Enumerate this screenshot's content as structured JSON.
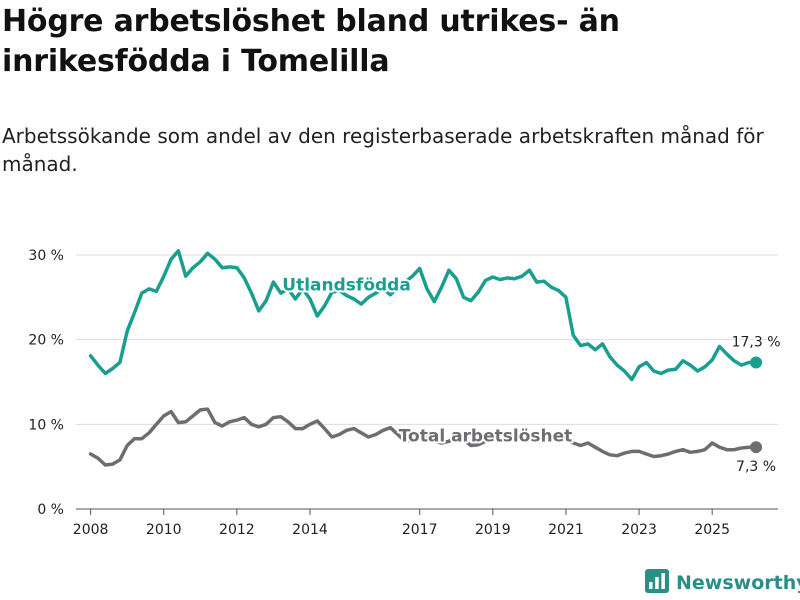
{
  "title": "Högre arbetslöshet bland utrikes- än inrikesfödda i Tomelilla",
  "subtitle": "Arbetssökande som andel av den registerbaserade arbetskraften månad för månad.",
  "brand": {
    "name": "Newsworthy",
    "icon": "bar-chart-logo-icon",
    "color": "#2a8f87"
  },
  "chart_data": {
    "type": "line",
    "title": "Högre arbetslöshet bland utrikes- än inrikesfödda i Tomelilla",
    "xlabel": "",
    "ylabel": "",
    "xlim": [
      2007.6,
      2026.8
    ],
    "ylim": [
      0,
      30
    ],
    "grid": true,
    "y_ticks": [
      0,
      10,
      20,
      30
    ],
    "y_tick_labels": [
      "0 %",
      "10 %",
      "20 %",
      "30 %"
    ],
    "x_ticks": [
      2008,
      2010,
      2012,
      2014,
      2017,
      2019,
      2021,
      2023,
      2025
    ],
    "x_tick_labels": [
      "2008",
      "2010",
      "2012",
      "2014",
      "2017",
      "2019",
      "2021",
      "2023",
      "2025"
    ],
    "series": [
      {
        "name": "Utlandsfödda",
        "color": "#1a9e8f",
        "end_label": "17,3 %",
        "x": [
          2008.0,
          2008.2,
          2008.4,
          2008.6,
          2008.8,
          2009.0,
          2009.2,
          2009.4,
          2009.6,
          2009.8,
          2010.0,
          2010.2,
          2010.4,
          2010.6,
          2010.8,
          2011.0,
          2011.2,
          2011.4,
          2011.6,
          2011.8,
          2012.0,
          2012.2,
          2012.4,
          2012.6,
          2012.8,
          2013.0,
          2013.2,
          2013.4,
          2013.6,
          2013.8,
          2014.0,
          2014.2,
          2014.4,
          2014.6,
          2014.8,
          2015.0,
          2015.2,
          2015.4,
          2015.6,
          2015.8,
          2016.0,
          2016.2,
          2016.4,
          2016.6,
          2016.8,
          2017.0,
          2017.2,
          2017.4,
          2017.6,
          2017.8,
          2018.0,
          2018.2,
          2018.4,
          2018.6,
          2018.8,
          2019.0,
          2019.2,
          2019.4,
          2019.6,
          2019.8,
          2020.0,
          2020.2,
          2020.4,
          2020.6,
          2020.8,
          2021.0,
          2021.2,
          2021.4,
          2021.6,
          2021.8,
          2022.0,
          2022.2,
          2022.4,
          2022.6,
          2022.8,
          2023.0,
          2023.2,
          2023.4,
          2023.6,
          2023.8,
          2024.0,
          2024.2,
          2024.4,
          2024.6,
          2024.8,
          2025.0,
          2025.2,
          2025.4,
          2025.6,
          2025.8,
          2026.0,
          2026.2
        ],
        "values": [
          18.1,
          17.0,
          16.0,
          16.6,
          17.3,
          21.0,
          23.2,
          25.5,
          26.0,
          25.7,
          27.5,
          29.5,
          30.5,
          27.5,
          28.5,
          29.2,
          30.2,
          29.5,
          28.5,
          28.6,
          28.5,
          27.3,
          25.5,
          23.4,
          24.6,
          26.8,
          25.5,
          26.0,
          24.8,
          26.0,
          24.8,
          22.8,
          24.0,
          25.6,
          25.8,
          25.2,
          24.8,
          24.2,
          25.0,
          25.5,
          26.0,
          25.3,
          26.2,
          26.8,
          27.5,
          28.4,
          26.0,
          24.5,
          26.2,
          28.2,
          27.2,
          25.0,
          24.6,
          25.6,
          27.0,
          27.4,
          27.1,
          27.3,
          27.2,
          27.5,
          28.2,
          26.8,
          26.9,
          26.2,
          25.8,
          25.0,
          20.5,
          19.3,
          19.5,
          18.8,
          19.5,
          18.0,
          17.0,
          16.3,
          15.3,
          16.8,
          17.3,
          16.3,
          16.0,
          16.4,
          16.5,
          17.5,
          17.0,
          16.3,
          16.8,
          17.6,
          19.2,
          18.3,
          17.5,
          17.0,
          17.3,
          17.3
        ]
      },
      {
        "name": "Total arbetslöshet",
        "color": "#6d6d72",
        "end_label": "7,3 %",
        "x": [
          2008.0,
          2008.2,
          2008.4,
          2008.6,
          2008.8,
          2009.0,
          2009.2,
          2009.4,
          2009.6,
          2009.8,
          2010.0,
          2010.2,
          2010.4,
          2010.6,
          2010.8,
          2011.0,
          2011.2,
          2011.4,
          2011.6,
          2011.8,
          2012.0,
          2012.2,
          2012.4,
          2012.6,
          2012.8,
          2013.0,
          2013.2,
          2013.4,
          2013.6,
          2013.8,
          2014.0,
          2014.2,
          2014.4,
          2014.6,
          2014.8,
          2015.0,
          2015.2,
          2015.4,
          2015.6,
          2015.8,
          2016.0,
          2016.2,
          2016.4,
          2016.6,
          2016.8,
          2017.0,
          2017.2,
          2017.4,
          2017.6,
          2017.8,
          2018.0,
          2018.2,
          2018.4,
          2018.6,
          2018.8,
          2019.0,
          2019.2,
          2019.4,
          2019.6,
          2019.8,
          2020.0,
          2020.2,
          2020.4,
          2020.6,
          2020.8,
          2021.0,
          2021.2,
          2021.4,
          2021.6,
          2021.8,
          2022.0,
          2022.2,
          2022.4,
          2022.6,
          2022.8,
          2023.0,
          2023.2,
          2023.4,
          2023.6,
          2023.8,
          2024.0,
          2024.2,
          2024.4,
          2024.6,
          2024.8,
          2025.0,
          2025.2,
          2025.4,
          2025.6,
          2025.8,
          2026.0,
          2026.2
        ],
        "values": [
          6.5,
          6.0,
          5.2,
          5.3,
          5.8,
          7.5,
          8.3,
          8.3,
          9.0,
          10.0,
          11.0,
          11.5,
          10.2,
          10.3,
          11.0,
          11.7,
          11.8,
          10.2,
          9.8,
          10.3,
          10.5,
          10.8,
          10.0,
          9.7,
          10.0,
          10.8,
          10.9,
          10.3,
          9.5,
          9.5,
          10.0,
          10.4,
          9.5,
          8.5,
          8.8,
          9.3,
          9.5,
          9.0,
          8.5,
          8.8,
          9.3,
          9.6,
          8.8,
          8.0,
          8.2,
          8.8,
          8.5,
          8.0,
          7.8,
          8.0,
          8.5,
          8.2,
          7.5,
          7.6,
          8.0,
          8.8,
          8.8,
          9.0,
          8.5,
          8.5,
          8.8,
          8.8,
          8.5,
          8.6,
          8.3,
          8.2,
          7.8,
          7.5,
          7.8,
          7.3,
          6.8,
          6.4,
          6.3,
          6.6,
          6.8,
          6.8,
          6.5,
          6.2,
          6.3,
          6.5,
          6.8,
          7.0,
          6.7,
          6.8,
          7.0,
          7.8,
          7.3,
          7.0,
          7.0,
          7.2,
          7.3,
          7.3
        ]
      }
    ],
    "annotations": [
      {
        "text": "Utlandsfödda",
        "series": "Utlandsfödda",
        "x": 2015.0,
        "y": 26.5
      },
      {
        "text": "Total arbetslöshet",
        "series": "Total arbetslöshet",
        "x": 2018.8,
        "y": 8.7
      }
    ]
  }
}
